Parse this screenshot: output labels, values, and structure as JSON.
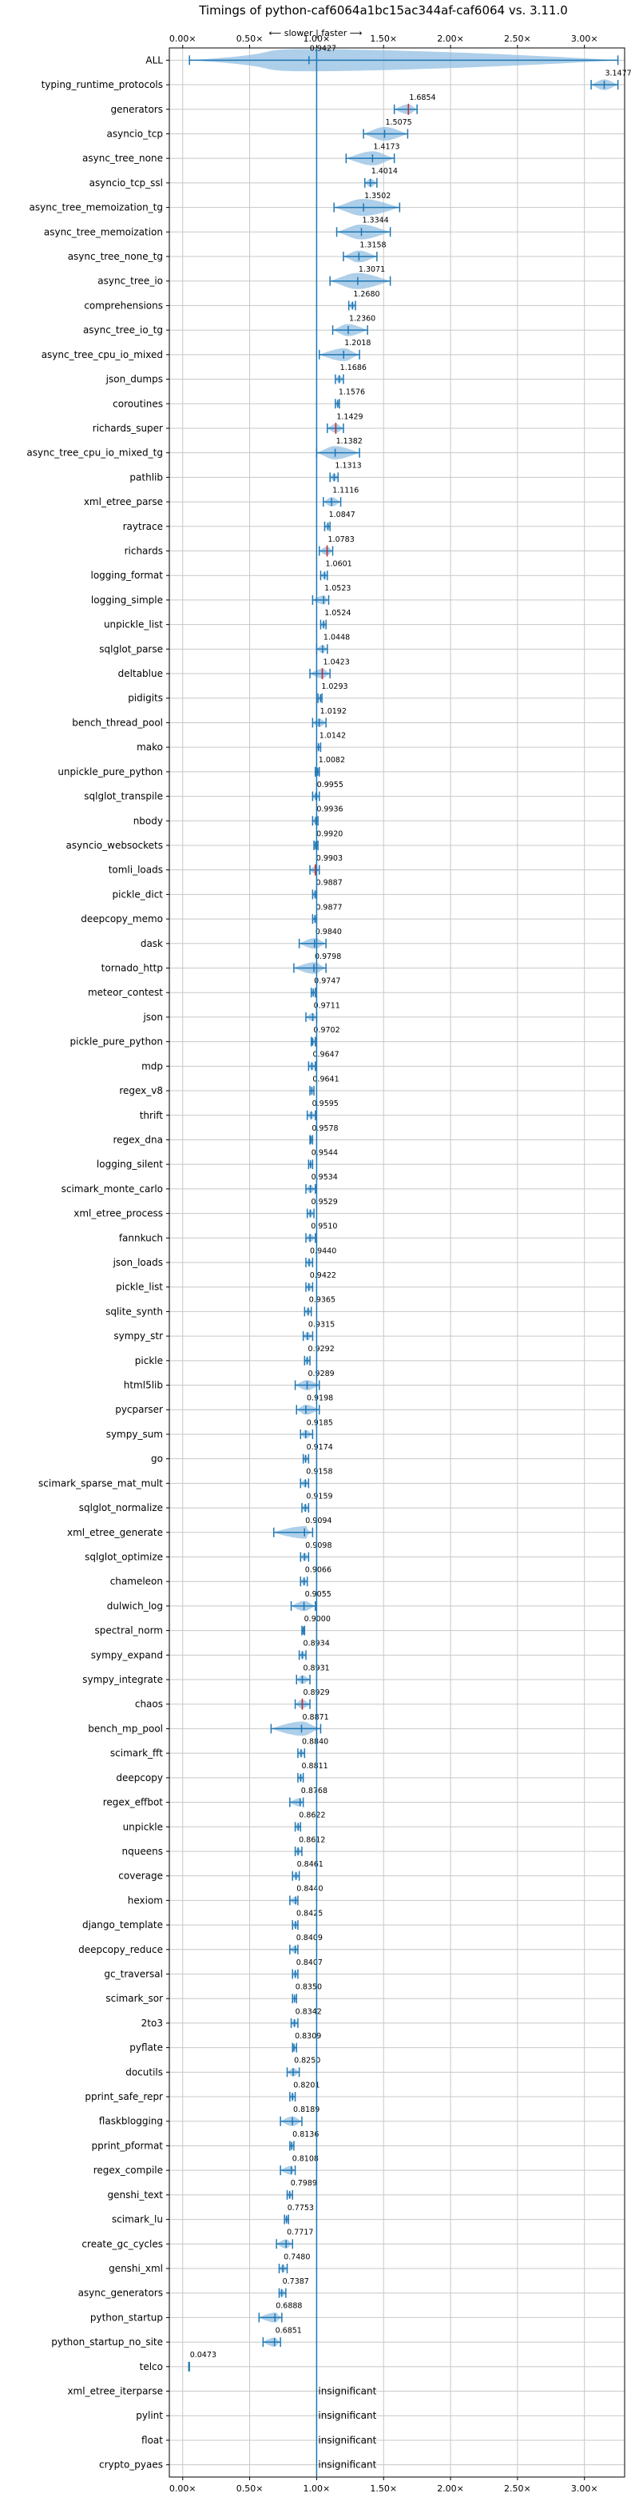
{
  "chart_data": {
    "type": "violin",
    "title": "Timings of python-caf6064a1bc15ac344af-caf6064 vs. 3.11.0",
    "subtitle": "⟵ slower | faster ⟶",
    "x_ticks": [
      "0.00×",
      "0.50×",
      "1.00×",
      "1.50×",
      "2.00×",
      "2.50×",
      "3.00×"
    ],
    "x_tick_values": [
      0,
      0.5,
      1,
      1.5,
      2,
      2.5,
      3
    ],
    "xlim": [
      -0.1,
      3.3
    ],
    "grid": true,
    "reference_line": 1.0,
    "colors": {
      "violin": "#8bbbe0",
      "line": "#1f77b4",
      "highlight": "#d62728",
      "ref": "#1f77b4"
    },
    "insignificant_label": "insignificant",
    "rows": [
      {
        "name": "ALL",
        "value": 0.9427,
        "label": "0.9427",
        "min": 0.05,
        "max": 3.25
      },
      {
        "name": "typing_runtime_protocols",
        "value": 3.1477,
        "label": "3.1477",
        "min": 3.05,
        "max": 3.25
      },
      {
        "name": "generators",
        "value": 1.6854,
        "label": "1.6854",
        "min": 1.58,
        "max": 1.75,
        "highlight": true
      },
      {
        "name": "asyncio_tcp",
        "value": 1.5075,
        "label": "1.5075",
        "min": 1.35,
        "max": 1.68
      },
      {
        "name": "async_tree_none",
        "value": 1.4173,
        "label": "1.4173",
        "min": 1.22,
        "max": 1.58
      },
      {
        "name": "asyncio_tcp_ssl",
        "value": 1.4014,
        "label": "1.4014",
        "min": 1.36,
        "max": 1.45
      },
      {
        "name": "async_tree_memoization_tg",
        "value": 1.3502,
        "label": "1.3502",
        "min": 1.13,
        "max": 1.62
      },
      {
        "name": "async_tree_memoization",
        "value": 1.3344,
        "label": "1.3344",
        "min": 1.15,
        "max": 1.55
      },
      {
        "name": "async_tree_none_tg",
        "value": 1.3158,
        "label": "1.3158",
        "min": 1.2,
        "max": 1.45
      },
      {
        "name": "async_tree_io",
        "value": 1.3071,
        "label": "1.3071",
        "min": 1.1,
        "max": 1.55
      },
      {
        "name": "comprehensions",
        "value": 1.268,
        "label": "1.2680",
        "min": 1.24,
        "max": 1.29
      },
      {
        "name": "async_tree_io_tg",
        "value": 1.236,
        "label": "1.2360",
        "min": 1.12,
        "max": 1.38
      },
      {
        "name": "async_tree_cpu_io_mixed",
        "value": 1.2018,
        "label": "1.2018",
        "min": 1.02,
        "max": 1.32
      },
      {
        "name": "json_dumps",
        "value": 1.1686,
        "label": "1.1686",
        "min": 1.14,
        "max": 1.2
      },
      {
        "name": "coroutines",
        "value": 1.1576,
        "label": "1.1576",
        "min": 1.14,
        "max": 1.17
      },
      {
        "name": "richards_super",
        "value": 1.1429,
        "label": "1.1429",
        "min": 1.08,
        "max": 1.2,
        "highlight": true
      },
      {
        "name": "async_tree_cpu_io_mixed_tg",
        "value": 1.1382,
        "label": "1.1382",
        "min": 1.0,
        "max": 1.32
      },
      {
        "name": "pathlib",
        "value": 1.1313,
        "label": "1.1313",
        "min": 1.1,
        "max": 1.16
      },
      {
        "name": "xml_etree_parse",
        "value": 1.1116,
        "label": "1.1116",
        "min": 1.05,
        "max": 1.18
      },
      {
        "name": "raytrace",
        "value": 1.0847,
        "label": "1.0847",
        "min": 1.06,
        "max": 1.1
      },
      {
        "name": "richards",
        "value": 1.0783,
        "label": "1.0783",
        "min": 1.02,
        "max": 1.12,
        "highlight": true
      },
      {
        "name": "logging_format",
        "value": 1.0601,
        "label": "1.0601",
        "min": 1.03,
        "max": 1.08
      },
      {
        "name": "logging_simple",
        "value": 1.0523,
        "label": "1.0523",
        "min": 0.97,
        "max": 1.09
      },
      {
        "name": "unpickle_list",
        "value": 1.0524,
        "label": "1.0524",
        "min": 1.03,
        "max": 1.07
      },
      {
        "name": "sqlglot_parse",
        "value": 1.0448,
        "label": "1.0448",
        "min": 1.0,
        "max": 1.08
      },
      {
        "name": "deltablue",
        "value": 1.0423,
        "label": "1.0423",
        "min": 0.95,
        "max": 1.1,
        "highlight": true
      },
      {
        "name": "pidigits",
        "value": 1.0293,
        "label": "1.0293",
        "min": 1.01,
        "max": 1.04
      },
      {
        "name": "bench_thread_pool",
        "value": 1.0192,
        "label": "1.0192",
        "min": 0.97,
        "max": 1.07
      },
      {
        "name": "mako",
        "value": 1.0142,
        "label": "1.0142",
        "min": 1.0,
        "max": 1.03
      },
      {
        "name": "unpickle_pure_python",
        "value": 1.0082,
        "label": "1.0082",
        "min": 0.99,
        "max": 1.02
      },
      {
        "name": "sqlglot_transpile",
        "value": 0.9955,
        "label": "0.9955",
        "min": 0.97,
        "max": 1.02
      },
      {
        "name": "nbody",
        "value": 0.9936,
        "label": "0.9936",
        "min": 0.97,
        "max": 1.01
      },
      {
        "name": "asyncio_websockets",
        "value": 0.992,
        "label": "0.9920",
        "min": 0.98,
        "max": 1.01
      },
      {
        "name": "tomli_loads",
        "value": 0.9903,
        "label": "0.9903",
        "min": 0.95,
        "max": 1.02,
        "highlight": true
      },
      {
        "name": "pickle_dict",
        "value": 0.9887,
        "label": "0.9887",
        "min": 0.97,
        "max": 1.0
      },
      {
        "name": "deepcopy_memo",
        "value": 0.9877,
        "label": "0.9877",
        "min": 0.97,
        "max": 1.0
      },
      {
        "name": "dask",
        "value": 0.984,
        "label": "0.9840",
        "min": 0.87,
        "max": 1.07
      },
      {
        "name": "tornado_http",
        "value": 0.9798,
        "label": "0.9798",
        "min": 0.83,
        "max": 1.07
      },
      {
        "name": "meteor_contest",
        "value": 0.9747,
        "label": "0.9747",
        "min": 0.96,
        "max": 0.99
      },
      {
        "name": "json",
        "value": 0.9711,
        "label": "0.9711",
        "min": 0.92,
        "max": 1.0
      },
      {
        "name": "pickle_pure_python",
        "value": 0.9702,
        "label": "0.9702",
        "min": 0.96,
        "max": 0.99
      },
      {
        "name": "mdp",
        "value": 0.9647,
        "label": "0.9647",
        "min": 0.94,
        "max": 0.99
      },
      {
        "name": "regex_v8",
        "value": 0.9641,
        "label": "0.9641",
        "min": 0.95,
        "max": 0.98
      },
      {
        "name": "thrift",
        "value": 0.9595,
        "label": "0.9595",
        "min": 0.93,
        "max": 0.99
      },
      {
        "name": "regex_dna",
        "value": 0.9578,
        "label": "0.9578",
        "min": 0.95,
        "max": 0.97
      },
      {
        "name": "logging_silent",
        "value": 0.9544,
        "label": "0.9544",
        "min": 0.94,
        "max": 0.97
      },
      {
        "name": "scimark_monte_carlo",
        "value": 0.9534,
        "label": "0.9534",
        "min": 0.92,
        "max": 0.99
      },
      {
        "name": "xml_etree_process",
        "value": 0.9529,
        "label": "0.9529",
        "min": 0.93,
        "max": 0.98
      },
      {
        "name": "fannkuch",
        "value": 0.951,
        "label": "0.9510",
        "min": 0.92,
        "max": 0.99
      },
      {
        "name": "json_loads",
        "value": 0.944,
        "label": "0.9440",
        "min": 0.92,
        "max": 0.97
      },
      {
        "name": "pickle_list",
        "value": 0.9422,
        "label": "0.9422",
        "min": 0.92,
        "max": 0.97
      },
      {
        "name": "sqlite_synth",
        "value": 0.9365,
        "label": "0.9365",
        "min": 0.91,
        "max": 0.96
      },
      {
        "name": "sympy_str",
        "value": 0.9315,
        "label": "0.9315",
        "min": 0.9,
        "max": 0.97
      },
      {
        "name": "pickle",
        "value": 0.9292,
        "label": "0.9292",
        "min": 0.91,
        "max": 0.95
      },
      {
        "name": "html5lib",
        "value": 0.9289,
        "label": "0.9289",
        "min": 0.84,
        "max": 1.02
      },
      {
        "name": "pycparser",
        "value": 0.9198,
        "label": "0.9198",
        "min": 0.85,
        "max": 1.02
      },
      {
        "name": "sympy_sum",
        "value": 0.9185,
        "label": "0.9185",
        "min": 0.88,
        "max": 0.97
      },
      {
        "name": "go",
        "value": 0.9174,
        "label": "0.9174",
        "min": 0.9,
        "max": 0.94
      },
      {
        "name": "scimark_sparse_mat_mult",
        "value": 0.9158,
        "label": "0.9158",
        "min": 0.88,
        "max": 0.94
      },
      {
        "name": "sqlglot_normalize",
        "value": 0.9159,
        "label": "0.9159",
        "min": 0.89,
        "max": 0.94
      },
      {
        "name": "xml_etree_generate",
        "value": 0.9094,
        "label": "0.9094",
        "min": 0.68,
        "max": 0.97
      },
      {
        "name": "sqlglot_optimize",
        "value": 0.9098,
        "label": "0.9098",
        "min": 0.88,
        "max": 0.94
      },
      {
        "name": "chameleon",
        "value": 0.9066,
        "label": "0.9066",
        "min": 0.88,
        "max": 0.93
      },
      {
        "name": "dulwich_log",
        "value": 0.9055,
        "label": "0.9055",
        "min": 0.81,
        "max": 0.99
      },
      {
        "name": "spectral_norm",
        "value": 0.9,
        "label": "0.9000",
        "min": 0.89,
        "max": 0.91
      },
      {
        "name": "sympy_expand",
        "value": 0.8934,
        "label": "0.8934",
        "min": 0.87,
        "max": 0.92
      },
      {
        "name": "sympy_integrate",
        "value": 0.8931,
        "label": "0.8931",
        "min": 0.85,
        "max": 0.95
      },
      {
        "name": "chaos",
        "value": 0.8929,
        "label": "0.8929",
        "min": 0.84,
        "max": 0.95,
        "highlight": true
      },
      {
        "name": "bench_mp_pool",
        "value": 0.8871,
        "label": "0.8871",
        "min": 0.66,
        "max": 1.03
      },
      {
        "name": "scimark_fft",
        "value": 0.884,
        "label": "0.8840",
        "min": 0.86,
        "max": 0.91
      },
      {
        "name": "deepcopy",
        "value": 0.8811,
        "label": "0.8811",
        "min": 0.86,
        "max": 0.9
      },
      {
        "name": "regex_effbot",
        "value": 0.8768,
        "label": "0.8768",
        "min": 0.8,
        "max": 0.9
      },
      {
        "name": "unpickle",
        "value": 0.8622,
        "label": "0.8622",
        "min": 0.84,
        "max": 0.88
      },
      {
        "name": "nqueens",
        "value": 0.8612,
        "label": "0.8612",
        "min": 0.84,
        "max": 0.89
      },
      {
        "name": "coverage",
        "value": 0.8461,
        "label": "0.8461",
        "min": 0.82,
        "max": 0.87
      },
      {
        "name": "hexiom",
        "value": 0.844,
        "label": "0.8440",
        "min": 0.8,
        "max": 0.86
      },
      {
        "name": "django_template",
        "value": 0.8425,
        "label": "0.8425",
        "min": 0.82,
        "max": 0.86
      },
      {
        "name": "deepcopy_reduce",
        "value": 0.8409,
        "label": "0.8409",
        "min": 0.8,
        "max": 0.86
      },
      {
        "name": "gc_traversal",
        "value": 0.8407,
        "label": "0.8407",
        "min": 0.82,
        "max": 0.86
      },
      {
        "name": "scimark_sor",
        "value": 0.835,
        "label": "0.8350",
        "min": 0.82,
        "max": 0.85
      },
      {
        "name": "2to3",
        "value": 0.8342,
        "label": "0.8342",
        "min": 0.81,
        "max": 0.86
      },
      {
        "name": "pyflate",
        "value": 0.8309,
        "label": "0.8309",
        "min": 0.82,
        "max": 0.85
      },
      {
        "name": "docutils",
        "value": 0.825,
        "label": "0.8250",
        "min": 0.78,
        "max": 0.87
      },
      {
        "name": "pprint_safe_repr",
        "value": 0.8201,
        "label": "0.8201",
        "min": 0.8,
        "max": 0.84
      },
      {
        "name": "flaskblogging",
        "value": 0.8189,
        "label": "0.8189",
        "min": 0.73,
        "max": 0.89
      },
      {
        "name": "pprint_pformat",
        "value": 0.8136,
        "label": "0.8136",
        "min": 0.8,
        "max": 0.83
      },
      {
        "name": "regex_compile",
        "value": 0.8108,
        "label": "0.8108",
        "min": 0.73,
        "max": 0.84
      },
      {
        "name": "genshi_text",
        "value": 0.7989,
        "label": "0.7989",
        "min": 0.78,
        "max": 0.82
      },
      {
        "name": "scimark_lu",
        "value": 0.7753,
        "label": "0.7753",
        "min": 0.76,
        "max": 0.79
      },
      {
        "name": "create_gc_cycles",
        "value": 0.7717,
        "label": "0.7717",
        "min": 0.7,
        "max": 0.82
      },
      {
        "name": "genshi_xml",
        "value": 0.748,
        "label": "0.7480",
        "min": 0.72,
        "max": 0.78
      },
      {
        "name": "async_generators",
        "value": 0.7387,
        "label": "0.7387",
        "min": 0.72,
        "max": 0.77
      },
      {
        "name": "python_startup",
        "value": 0.6888,
        "label": "0.6888",
        "min": 0.57,
        "max": 0.74
      },
      {
        "name": "python_startup_no_site",
        "value": 0.6851,
        "label": "0.6851",
        "min": 0.6,
        "max": 0.73
      },
      {
        "name": "telco",
        "value": 0.0473,
        "label": "0.0473",
        "min": 0.045,
        "max": 0.05
      },
      {
        "name": "xml_etree_iterparse",
        "insignificant": true
      },
      {
        "name": "pylint",
        "insignificant": true
      },
      {
        "name": "float",
        "insignificant": true
      },
      {
        "name": "crypto_pyaes",
        "insignificant": true
      }
    ]
  }
}
